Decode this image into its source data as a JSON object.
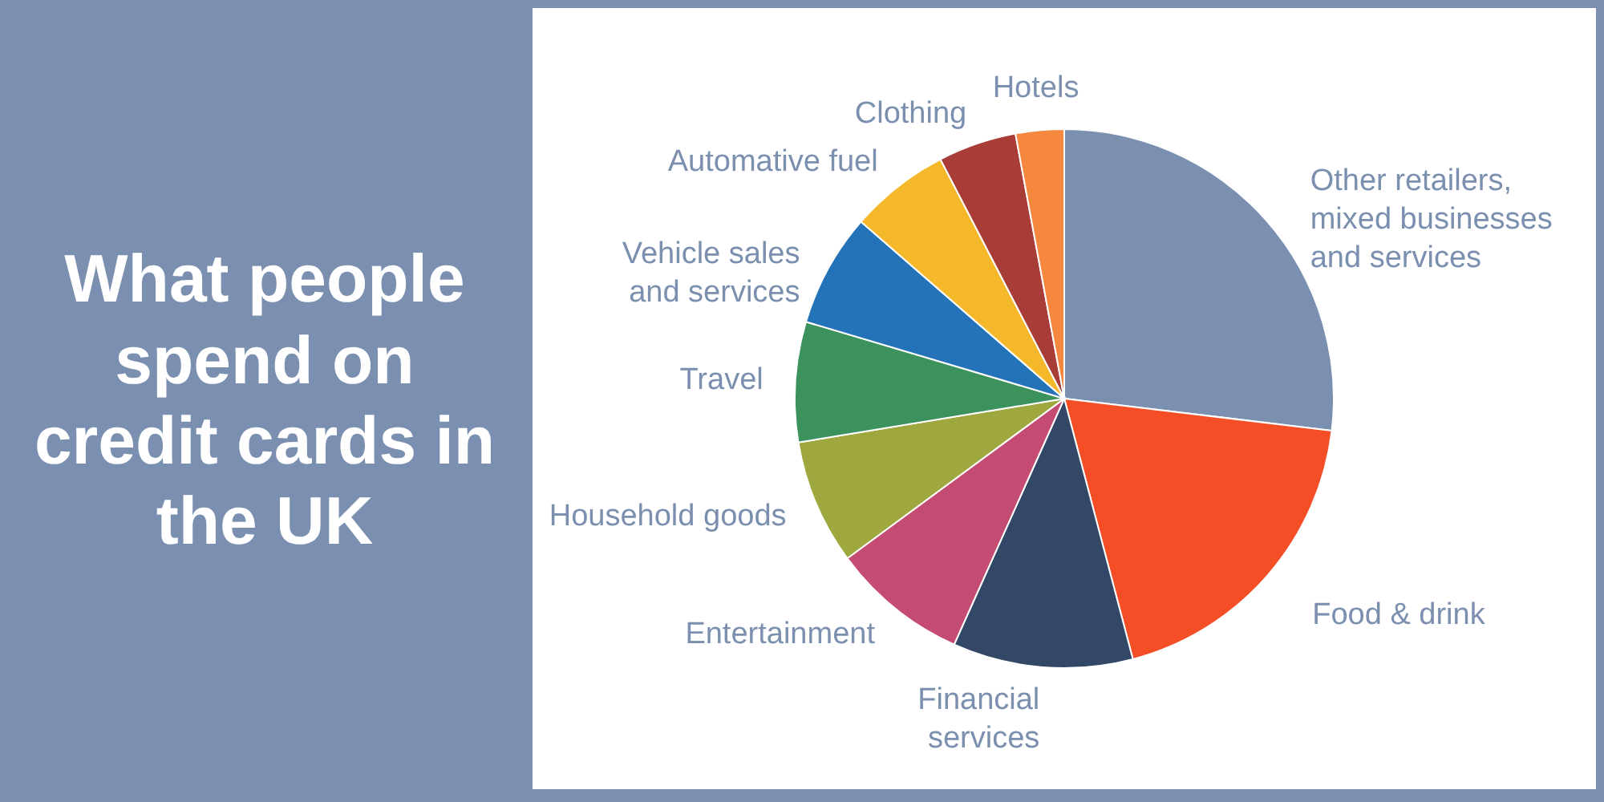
{
  "chart_data": {
    "type": "pie",
    "title": "What people spend on credit cards in the UK",
    "categories": [
      "Other retailers, mixed businesses and services",
      "Food & drink",
      "Financial services",
      "Entertainment",
      "Household goods",
      "Travel",
      "Vehicle sales and services",
      "Automative fuel",
      "Clothing",
      "Hotels"
    ],
    "values": [
      26.9,
      19,
      10.8,
      8.2,
      7.5,
      7.2,
      6.8,
      6,
      4.7,
      2.9
    ],
    "colors": [
      "#7b90b1",
      "#f44e27",
      "#334766",
      "#c44b72",
      "#9fa83f",
      "#3b925c",
      "#2473b9",
      "#f5b82b",
      "#a83c36",
      "#f5873f"
    ]
  }
}
